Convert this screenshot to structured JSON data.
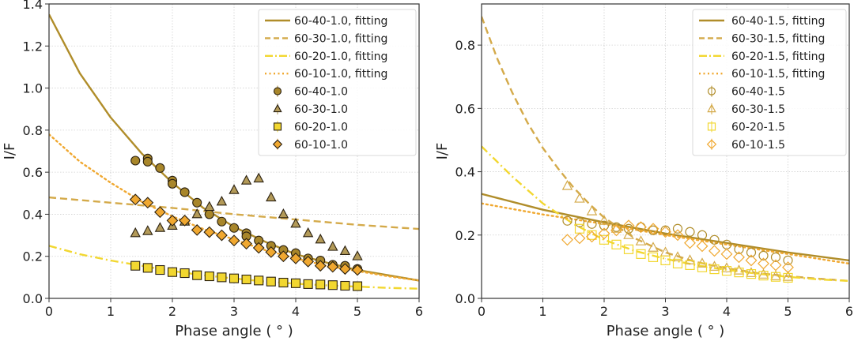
{
  "chart_data": [
    {
      "type": "scatter",
      "panel": "left",
      "title": "",
      "xlabel": "Phase angle ( $^\\circ$ )",
      "xlabel_display": "Phase angle ( ° )",
      "ylabel": "I/F",
      "xlim": [
        0,
        6
      ],
      "ylim": [
        0,
        1.4
      ],
      "xticks": [
        "0",
        "1",
        "2",
        "3",
        "4",
        "5",
        "6"
      ],
      "yticks": [
        "0.0",
        "0.2",
        "0.4",
        "0.6",
        "0.8",
        "1.0",
        "1.2",
        "1.4"
      ],
      "xtick_values": [
        0,
        1,
        2,
        3,
        4,
        5,
        6
      ],
      "ytick_values": [
        0,
        0.2,
        0.4,
        0.6,
        0.8,
        1.0,
        1.2,
        1.4
      ],
      "grid": true,
      "legend_position": "top-right",
      "fits": [
        {
          "name": "60-40-1.0, fitting",
          "style": "solid",
          "color": "#b08d2a",
          "x": [
            0,
            0.5,
            1,
            1.5,
            2,
            2.5,
            3,
            3.5,
            4,
            4.5,
            5,
            5.5,
            6
          ],
          "y": [
            1.35,
            1.07,
            0.86,
            0.69,
            0.55,
            0.43,
            0.34,
            0.27,
            0.21,
            0.17,
            0.135,
            0.11,
            0.085
          ]
        },
        {
          "name": "60-30-1.0, fitting",
          "style": "dashed",
          "color": "#d4aa4a",
          "x": [
            0,
            1,
            2,
            3,
            4,
            5,
            6
          ],
          "y": [
            0.48,
            0.455,
            0.43,
            0.4,
            0.375,
            0.35,
            0.33
          ]
        },
        {
          "name": "60-20-1.0, fitting",
          "style": "dashdot",
          "color": "#f2d730",
          "x": [
            0,
            0.5,
            1,
            1.5,
            2,
            2.5,
            3,
            3.5,
            4,
            4.5,
            5,
            5.5,
            6
          ],
          "y": [
            0.25,
            0.21,
            0.18,
            0.155,
            0.13,
            0.11,
            0.095,
            0.08,
            0.07,
            0.062,
            0.056,
            0.05,
            0.046
          ]
        },
        {
          "name": "60-10-1.0, fitting",
          "style": "dotted",
          "color": "#f0a830",
          "x": [
            0,
            0.5,
            1,
            1.5,
            2,
            2.5,
            3,
            3.5,
            4,
            4.5,
            5,
            5.5,
            6
          ],
          "y": [
            0.78,
            0.65,
            0.55,
            0.46,
            0.39,
            0.33,
            0.28,
            0.23,
            0.19,
            0.155,
            0.13,
            0.105,
            0.085
          ]
        }
      ],
      "series": [
        {
          "name": "60-40-1.0",
          "marker": "circle",
          "color": "#a8862a",
          "x": [
            1.4,
            1.6,
            1.6,
            1.8,
            2.0,
            2.0,
            2.2,
            2.4,
            2.6,
            2.8,
            3.0,
            3.2,
            3.2,
            3.4,
            3.6,
            3.8,
            4.0,
            4.2,
            4.4,
            4.6,
            4.8,
            5.0
          ],
          "y": [
            0.655,
            0.665,
            0.65,
            0.62,
            0.56,
            0.545,
            0.505,
            0.455,
            0.4,
            0.365,
            0.335,
            0.31,
            0.295,
            0.275,
            0.25,
            0.23,
            0.215,
            0.19,
            0.18,
            0.16,
            0.155,
            0.14
          ]
        },
        {
          "name": "60-30-1.0",
          "marker": "triangle",
          "color": "#b39a58",
          "x": [
            1.4,
            1.6,
            1.8,
            2.0,
            2.2,
            2.4,
            2.6,
            2.8,
            3.0,
            3.2,
            3.4,
            3.6,
            3.8,
            4.0,
            4.2,
            4.4,
            4.6,
            4.8,
            5.0
          ],
          "y": [
            0.31,
            0.32,
            0.335,
            0.345,
            0.365,
            0.4,
            0.435,
            0.46,
            0.515,
            0.56,
            0.57,
            0.48,
            0.4,
            0.355,
            0.31,
            0.28,
            0.245,
            0.225,
            0.2
          ]
        },
        {
          "name": "60-20-1.0",
          "marker": "square",
          "color": "#f2d730",
          "x": [
            1.4,
            1.6,
            1.8,
            2.0,
            2.2,
            2.4,
            2.6,
            2.8,
            3.0,
            3.2,
            3.4,
            3.6,
            3.8,
            4.0,
            4.2,
            4.4,
            4.6,
            4.8,
            5.0
          ],
          "y": [
            0.155,
            0.145,
            0.135,
            0.125,
            0.12,
            0.11,
            0.105,
            0.1,
            0.095,
            0.09,
            0.085,
            0.08,
            0.075,
            0.072,
            0.068,
            0.066,
            0.063,
            0.06,
            0.058
          ]
        },
        {
          "name": "60-10-1.0",
          "marker": "diamond",
          "color": "#f0a830",
          "x": [
            1.4,
            1.6,
            1.8,
            2.0,
            2.2,
            2.4,
            2.6,
            2.8,
            3.0,
            3.2,
            3.4,
            3.6,
            3.8,
            4.0,
            4.2,
            4.4,
            4.6,
            4.8,
            5.0
          ],
          "y": [
            0.47,
            0.455,
            0.41,
            0.37,
            0.37,
            0.325,
            0.315,
            0.3,
            0.275,
            0.26,
            0.24,
            0.22,
            0.2,
            0.19,
            0.175,
            0.155,
            0.15,
            0.14,
            0.135
          ]
        }
      ]
    },
    {
      "type": "scatter",
      "panel": "right",
      "title": "",
      "xlabel_display": "Phase angle ( ° )",
      "ylabel": "I/F",
      "xlim": [
        0,
        6
      ],
      "ylim": [
        0,
        0.93
      ],
      "xticks": [
        "0",
        "1",
        "2",
        "3",
        "4",
        "5",
        "6"
      ],
      "yticks": [
        "0.0",
        "0.2",
        "0.4",
        "0.6",
        "0.8"
      ],
      "xtick_values": [
        0,
        1,
        2,
        3,
        4,
        5,
        6
      ],
      "ytick_values": [
        0,
        0.2,
        0.4,
        0.6,
        0.8
      ],
      "grid": true,
      "legend_position": "top-right",
      "fits": [
        {
          "name": "60-40-1.5, fitting",
          "style": "solid",
          "color": "#b08d2a",
          "x": [
            0,
            1,
            2,
            3,
            4,
            5,
            6
          ],
          "y": [
            0.33,
            0.28,
            0.24,
            0.205,
            0.175,
            0.145,
            0.12
          ]
        },
        {
          "name": "60-30-1.5, fitting",
          "style": "dashed",
          "color": "#d4aa4a",
          "x": [
            0,
            0.25,
            0.5,
            0.75,
            1,
            1.25,
            1.5,
            1.75,
            2,
            2.5,
            3,
            3.5,
            4,
            4.5,
            5,
            5.5,
            6
          ],
          "y": [
            0.89,
            0.76,
            0.65,
            0.555,
            0.475,
            0.41,
            0.35,
            0.3,
            0.255,
            0.19,
            0.145,
            0.115,
            0.095,
            0.08,
            0.07,
            0.062,
            0.055
          ]
        },
        {
          "name": "60-20-1.5, fitting",
          "style": "dashdot",
          "color": "#f2d730",
          "x": [
            0,
            0.5,
            1,
            1.5,
            2,
            2.5,
            3,
            3.5,
            4,
            4.5,
            5,
            5.5,
            6
          ],
          "y": [
            0.48,
            0.385,
            0.3,
            0.235,
            0.185,
            0.15,
            0.125,
            0.105,
            0.09,
            0.078,
            0.068,
            0.06,
            0.055
          ]
        },
        {
          "name": "60-10-1.5, fitting",
          "style": "dotted",
          "color": "#f0a830",
          "x": [
            0,
            1,
            2,
            3,
            4,
            5,
            6
          ],
          "y": [
            0.3,
            0.265,
            0.235,
            0.2,
            0.17,
            0.14,
            0.11
          ]
        }
      ],
      "series": [
        {
          "name": "60-40-1.5",
          "marker": "circle",
          "color": "#b08d2a",
          "x": [
            1.4,
            1.6,
            1.8,
            2.0,
            2.2,
            2.4,
            2.6,
            2.8,
            3.0,
            3.2,
            3.4,
            3.6,
            3.8,
            4.0,
            4.2,
            4.4,
            4.6,
            4.8,
            5.0
          ],
          "y": [
            0.245,
            0.24,
            0.235,
            0.23,
            0.225,
            0.22,
            0.225,
            0.215,
            0.215,
            0.22,
            0.21,
            0.2,
            0.185,
            0.17,
            0.155,
            0.145,
            0.135,
            0.13,
            0.12
          ]
        },
        {
          "name": "60-30-1.5",
          "marker": "triangle",
          "color": "#d4aa4a",
          "x": [
            1.4,
            1.6,
            1.8,
            2.0,
            2.2,
            2.4,
            2.6,
            2.8,
            3.0,
            3.2,
            3.4,
            3.6,
            3.8,
            4.0,
            4.2,
            4.4,
            4.6,
            4.8,
            5.0
          ],
          "y": [
            0.355,
            0.315,
            0.275,
            0.245,
            0.22,
            0.2,
            0.18,
            0.16,
            0.145,
            0.13,
            0.12,
            0.11,
            0.1,
            0.095,
            0.088,
            0.08,
            0.075,
            0.07,
            0.068
          ]
        },
        {
          "name": "60-20-1.5",
          "marker": "square",
          "color": "#f2d730",
          "x": [
            1.6,
            1.8,
            2.0,
            2.2,
            2.4,
            2.6,
            2.8,
            3.0,
            3.2,
            3.4,
            3.6,
            3.8,
            4.0,
            4.2,
            4.4,
            4.6,
            4.8,
            5.0
          ],
          "y": [
            0.22,
            0.2,
            0.185,
            0.17,
            0.155,
            0.14,
            0.13,
            0.12,
            0.11,
            0.105,
            0.098,
            0.092,
            0.087,
            0.082,
            0.077,
            0.072,
            0.068,
            0.065
          ]
        },
        {
          "name": "60-10-1.5",
          "marker": "diamond",
          "color": "#f0a830",
          "x": [
            1.4,
            1.6,
            1.8,
            2.0,
            2.2,
            2.4,
            2.6,
            2.8,
            3.0,
            3.2,
            3.4,
            3.6,
            3.8,
            4.0,
            4.2,
            4.4,
            4.6,
            4.8,
            5.0
          ],
          "y": [
            0.185,
            0.19,
            0.195,
            0.205,
            0.215,
            0.23,
            0.225,
            0.22,
            0.21,
            0.2,
            0.175,
            0.165,
            0.15,
            0.14,
            0.13,
            0.12,
            0.11,
            0.105,
            0.098
          ]
        }
      ]
    }
  ]
}
